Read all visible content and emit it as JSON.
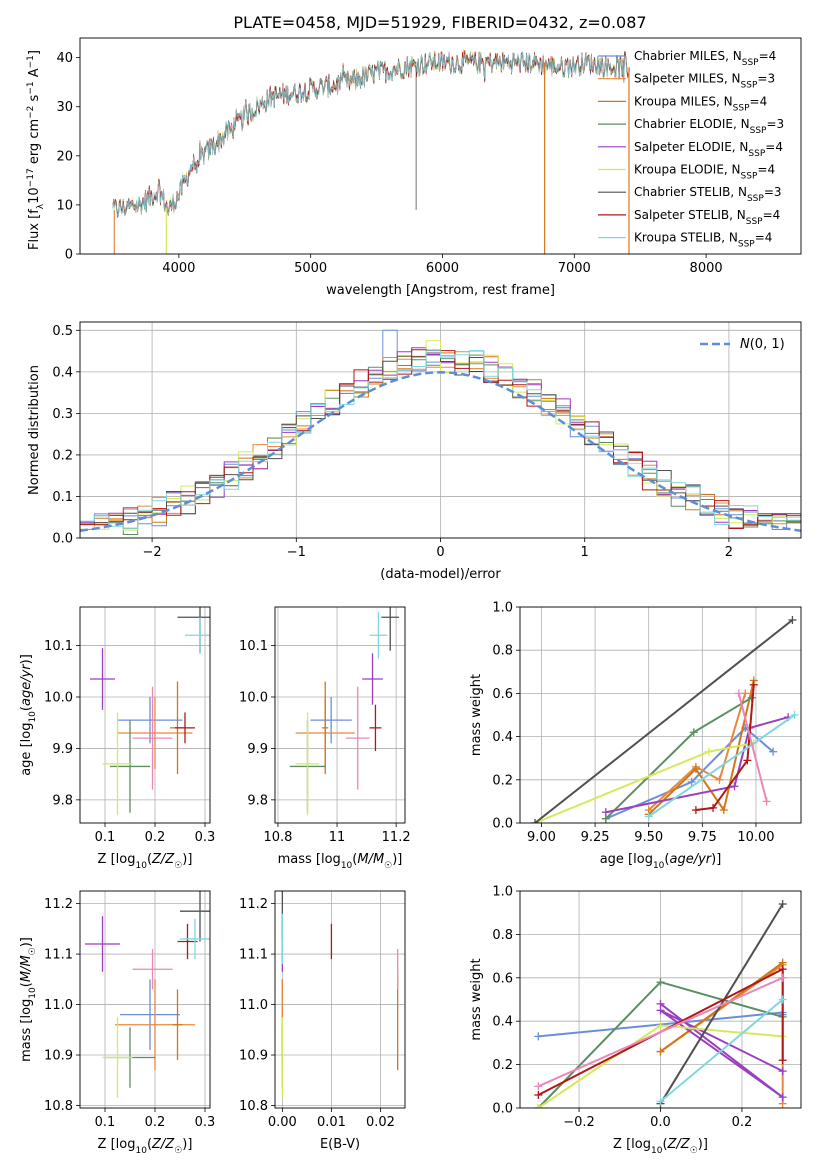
{
  "figure": {
    "title": "PLATE=0458, MJD=51929, FIBERID=0432, z=0.087"
  },
  "colors": {
    "Chabrier MILES": "#6a8fd8",
    "Salpeter MILES": "#e8883e",
    "Kroupa MILES": "#d07818",
    "Chabrier ELODIE": "#5b8f63",
    "Salpeter ELODIE": "#9a3fc0",
    "Kroupa ELODIE": "#d7e85a",
    "Chabrier STELIB": "#505050",
    "Salpeter STELIB": "#b01818",
    "Kroupa STELIB": "#7fd7df",
    "pink": "#e888b8",
    "grid": "#b0b0b0",
    "gaussian": "#5b8fd8"
  },
  "chart_data": [
    {
      "id": "spectrum",
      "type": "line",
      "xlabel": "wavelength [Angstrom, rest frame]",
      "ylabel": "Flux [f_λ 10^-17 erg cm^-2 s^-1 A^-1]",
      "xlim": [
        3250,
        8720
      ],
      "ylim": [
        0,
        44
      ],
      "xticks": [
        4000,
        5000,
        6000,
        7000,
        8000
      ],
      "yticks": [
        0,
        10,
        20,
        30,
        40
      ],
      "grid": false,
      "legend_position": "upper right",
      "legend": [
        "Chabrier MILES, N_SSP=4",
        "Salpeter MILES, N_SSP=3",
        "Kroupa MILES, N_SSP=4",
        "Chabrier ELODIE, N_SSP=3",
        "Salpeter ELODIE, N_SSP=4",
        "Kroupa ELODIE, N_SSP=4",
        "Chabrier STELIB, N_SSP=3",
        "Salpeter STELIB, N_SSP=4",
        "Kroupa STELIB, N_SSP=4"
      ],
      "anchors_x": [
        3500,
        3700,
        3850,
        3920,
        4000,
        4100,
        4300,
        4500,
        4700,
        4900,
        5100,
        5300,
        5500,
        5700,
        5900,
        6100,
        6300,
        6500,
        6700,
        6900,
        7100,
        7300,
        7420
      ],
      "anchors_y": [
        9,
        10,
        13,
        9,
        12,
        18,
        23,
        28,
        32,
        33,
        34,
        35,
        37,
        38,
        39,
        39,
        39,
        39,
        39,
        38,
        39,
        38,
        38
      ]
    },
    {
      "id": "residuals",
      "type": "histogram",
      "xlabel": "(data-model)/error",
      "ylabel": "Normed distribution",
      "xlim": [
        -2.5,
        2.5
      ],
      "ylim": [
        0,
        0.52
      ],
      "xticks": [
        -2,
        -1,
        0,
        1,
        2
      ],
      "yticks": [
        0.0,
        0.1,
        0.2,
        0.3,
        0.4,
        0.5
      ],
      "grid": true,
      "legend_position": "upper right",
      "legend": [
        "N(0,1)"
      ],
      "bin_edges_start": -2.5,
      "bin_width": 0.1,
      "base_series_9_models": "N(0,1) density with per-model scatter",
      "selected_heights": {
        "-0.4": 0.5,
        "-0.1": 0.48,
        "0.3": 0.44
      }
    },
    {
      "id": "age-vs-Z",
      "type": "scatter",
      "xlabel": "Z [log10(Z/Z☉)]",
      "ylabel": "age [log10(age/yr)]",
      "xlim": [
        0.05,
        0.31
      ],
      "ylim": [
        9.755,
        10.175
      ],
      "xticks": [
        0.1,
        0.2,
        0.3
      ],
      "yticks": [
        9.8,
        9.9,
        10.0,
        10.1
      ],
      "grid": true,
      "points": [
        {
          "model": "Chabrier MILES",
          "x": 0.19,
          "y": 9.955,
          "xerr": 0.065,
          "yerr": 0.045
        },
        {
          "model": "Salpeter MILES",
          "x": 0.2,
          "y": 9.93,
          "xerr": 0.075,
          "yerr": 0.07
        },
        {
          "model": "Kroupa MILES",
          "x": 0.245,
          "y": 9.94,
          "xerr": 0.015,
          "yerr": 0.09
        },
        {
          "model": "Chabrier ELODIE",
          "x": 0.15,
          "y": 9.865,
          "xerr": 0.04,
          "yerr": 0.09
        },
        {
          "model": "Salpeter ELODIE",
          "x": 0.095,
          "y": 10.035,
          "xerr": 0.025,
          "yerr": 0.06
        },
        {
          "model": "Kroupa ELODIE",
          "x": 0.125,
          "y": 9.87,
          "xerr": 0.03,
          "yerr": 0.1
        },
        {
          "model": "Chabrier STELIB",
          "x": 0.29,
          "y": 10.155,
          "xerr": 0.045,
          "yerr": 0.07
        },
        {
          "model": "Salpeter STELIB",
          "x": 0.26,
          "y": 9.94,
          "xerr": 0.02,
          "yerr": 0.03
        },
        {
          "model": "Kroupa STELIB",
          "x": 0.29,
          "y": 10.12,
          "xerr": 0.03,
          "yerr": 0.035
        },
        {
          "model": "pink",
          "x": 0.195,
          "y": 9.92,
          "xerr": 0.04,
          "yerr": 0.1
        }
      ]
    },
    {
      "id": "age-vs-mass",
      "type": "scatter",
      "xlabel": "mass [log10(M/M☉)]",
      "ylabel": "",
      "xlim": [
        10.79,
        11.23
      ],
      "ylim": [
        9.755,
        10.175
      ],
      "xticks": [
        10.8,
        11.0,
        11.2
      ],
      "yticks": [
        9.8,
        9.9,
        10.0,
        10.1
      ],
      "grid": true,
      "points": [
        {
          "model": "Chabrier MILES",
          "x": 10.98,
          "y": 9.955,
          "xerr": 0.07,
          "yerr": 0.045
        },
        {
          "model": "Salpeter MILES",
          "x": 10.96,
          "y": 9.93,
          "xerr": 0.1,
          "yerr": 0.07
        },
        {
          "model": "Kroupa MILES",
          "x": 10.96,
          "y": 9.94,
          "xerr": 0.01,
          "yerr": 0.09
        },
        {
          "model": "Chabrier ELODIE",
          "x": 10.9,
          "y": 9.865,
          "xerr": 0.06,
          "yerr": 0.09
        },
        {
          "model": "Salpeter ELODIE",
          "x": 11.12,
          "y": 10.035,
          "xerr": 0.035,
          "yerr": 0.05
        },
        {
          "model": "Kroupa ELODIE",
          "x": 10.9,
          "y": 9.87,
          "xerr": 0.04,
          "yerr": 0.1
        },
        {
          "model": "Chabrier STELIB",
          "x": 11.18,
          "y": 10.155,
          "xerr": 0.03,
          "yerr": 0.065
        },
        {
          "model": "Salpeter STELIB",
          "x": 11.13,
          "y": 9.94,
          "xerr": 0.02,
          "yerr": 0.045
        },
        {
          "model": "Kroupa STELIB",
          "x": 11.14,
          "y": 10.12,
          "xerr": 0.03,
          "yerr": 0.045
        },
        {
          "model": "pink",
          "x": 11.07,
          "y": 9.92,
          "xerr": 0.04,
          "yerr": 0.1
        }
      ]
    },
    {
      "id": "massweight-vs-age",
      "type": "line",
      "xlabel": "age [log10(age/yr)]",
      "ylabel": "mass weight",
      "xlim": [
        8.9,
        10.21
      ],
      "ylim": [
        0,
        1.0
      ],
      "xticks": [
        9.0,
        9.25,
        9.5,
        9.75,
        10.0
      ],
      "xticklabels": [
        "9.00",
        "9.25",
        "9.50",
        "9.75",
        "10.00"
      ],
      "yticks": [
        0.0,
        0.2,
        0.4,
        0.6,
        0.8,
        1.0
      ],
      "grid": true,
      "series": [
        {
          "model": "Chabrier MILES",
          "x": [
            9.3,
            9.7,
            9.95,
            10.08
          ],
          "y": [
            0.02,
            0.19,
            0.44,
            0.33
          ]
        },
        {
          "model": "Salpeter MILES",
          "x": [
            9.5,
            9.72,
            9.83,
            9.95
          ],
          "y": [
            0.06,
            0.26,
            0.2,
            0.6
          ]
        },
        {
          "model": "Kroupa MILES",
          "x": [
            9.5,
            9.72,
            9.85,
            9.99
          ],
          "y": [
            0.04,
            0.25,
            0.06,
            0.66
          ]
        },
        {
          "model": "Chabrier ELODIE",
          "x": [
            9.3,
            9.71,
            9.98
          ],
          "y": [
            0.02,
            0.42,
            0.58
          ]
        },
        {
          "model": "Salpeter ELODIE",
          "x": [
            9.3,
            9.9,
            9.97,
            10.15
          ],
          "y": [
            0.05,
            0.17,
            0.44,
            0.49
          ]
        },
        {
          "model": "Kroupa ELODIE",
          "x": [
            8.97,
            9.78,
            9.99
          ],
          "y": [
            0.0,
            0.33,
            0.37
          ]
        },
        {
          "model": "Chabrier STELIB",
          "x": [
            8.97,
            10.17
          ],
          "y": [
            0.0,
            0.94
          ]
        },
        {
          "model": "Salpeter STELIB",
          "x": [
            9.72,
            9.8,
            9.96,
            9.99
          ],
          "y": [
            0.06,
            0.07,
            0.29,
            0.64
          ]
        },
        {
          "model": "Kroupa STELIB",
          "x": [
            9.5,
            10.18
          ],
          "y": [
            0.03,
            0.5
          ]
        },
        {
          "model": "pink",
          "x": [
            9.92,
            10.05
          ],
          "y": [
            0.6,
            0.1
          ]
        }
      ]
    },
    {
      "id": "mass-vs-Z",
      "type": "scatter",
      "xlabel": "Z [log10(Z/Z☉)]",
      "ylabel": "mass [log10(M/M☉)]",
      "xlim": [
        0.05,
        0.31
      ],
      "ylim": [
        10.795,
        11.225
      ],
      "xticks": [
        0.1,
        0.2,
        0.3
      ],
      "yticks": [
        10.8,
        10.9,
        11.0,
        11.1,
        11.2
      ],
      "grid": true,
      "points": [
        {
          "model": "Chabrier MILES",
          "x": 0.19,
          "y": 10.98,
          "xerr": 0.06,
          "yerr": 0.07
        },
        {
          "model": "Salpeter MILES",
          "x": 0.2,
          "y": 10.96,
          "xerr": 0.08,
          "yerr": 0.09
        },
        {
          "model": "Kroupa MILES",
          "x": 0.245,
          "y": 10.96,
          "xerr": 0.01,
          "yerr": 0.07
        },
        {
          "model": "Chabrier ELODIE",
          "x": 0.15,
          "y": 10.895,
          "xerr": 0.05,
          "yerr": 0.06
        },
        {
          "model": "Salpeter ELODIE",
          "x": 0.095,
          "y": 11.12,
          "xerr": 0.035,
          "yerr": 0.055
        },
        {
          "model": "Kroupa ELODIE",
          "x": 0.125,
          "y": 10.895,
          "xerr": 0.03,
          "yerr": 0.08
        },
        {
          "model": "Chabrier STELIB",
          "x": 0.29,
          "y": 11.185,
          "xerr": 0.04,
          "yerr": 0.06
        },
        {
          "model": "Salpeter STELIB",
          "x": 0.265,
          "y": 11.125,
          "xerr": 0.02,
          "yerr": 0.035
        },
        {
          "model": "Kroupa STELIB",
          "x": 0.28,
          "y": 11.13,
          "xerr": 0.03,
          "yerr": 0.04
        },
        {
          "model": "pink",
          "x": 0.195,
          "y": 11.07,
          "xerr": 0.04,
          "yerr": 0.04
        }
      ]
    },
    {
      "id": "mass-vs-EBV",
      "type": "scatter",
      "xlabel": "E(B-V)",
      "ylabel": "",
      "xlim": [
        -0.0015,
        0.025
      ],
      "ylim": [
        10.795,
        11.225
      ],
      "xticks": [
        0.0,
        0.01,
        0.02
      ],
      "xticklabels": [
        "0.00",
        "0.01",
        "0.02"
      ],
      "yticks": [
        10.8,
        10.9,
        11.0,
        11.1,
        11.2
      ],
      "grid": true,
      "points": [
        {
          "model": "Chabrier MILES",
          "x": 0.0,
          "y": 10.98,
          "xerr": 0,
          "yerr": 0.07
        },
        {
          "model": "Salpeter MILES",
          "x": 0.0,
          "y": 10.96,
          "xerr": 0,
          "yerr": 0.09
        },
        {
          "model": "Kroupa MILES",
          "x": 0.0235,
          "y": 10.97,
          "xerr": 0,
          "yerr": 0.1
        },
        {
          "model": "Chabrier ELODIE",
          "x": 0.0,
          "y": 10.895,
          "xerr": 0,
          "yerr": 0.06
        },
        {
          "model": "Salpeter ELODIE",
          "x": 0.0,
          "y": 11.12,
          "xerr": 0,
          "yerr": 0.055
        },
        {
          "model": "Kroupa ELODIE",
          "x": 0.0,
          "y": 10.895,
          "xerr": 0,
          "yerr": 0.08
        },
        {
          "model": "Chabrier STELIB",
          "x": 0.0,
          "y": 11.185,
          "xerr": 0,
          "yerr": 0.06
        },
        {
          "model": "Salpeter STELIB",
          "x": 0.01,
          "y": 11.125,
          "xerr": 0,
          "yerr": 0.035
        },
        {
          "model": "Kroupa STELIB",
          "x": 0.0,
          "y": 11.13,
          "xerr": 0,
          "yerr": 0.05
        },
        {
          "model": "pink",
          "x": 0.0235,
          "y": 11.07,
          "xerr": 0,
          "yerr": 0.04
        }
      ]
    },
    {
      "id": "massweight-vs-Z",
      "type": "line",
      "xlabel": "Z [log10(Z/Z☉)]",
      "ylabel": "mass weight",
      "xlim": [
        -0.345,
        0.345
      ],
      "ylim": [
        0,
        1.0
      ],
      "xticks": [
        -0.2,
        0.0,
        0.2
      ],
      "xticklabels": [
        "−0.2",
        "0.0",
        "0.2"
      ],
      "yticks": [
        0.0,
        0.2,
        0.4,
        0.6,
        0.8,
        1.0
      ],
      "grid": true,
      "series": [
        {
          "model": "Chabrier MILES",
          "x": [
            -0.3,
            0.3,
            0.3
          ],
          "y": [
            0.33,
            0.44,
            0.43
          ]
        },
        {
          "model": "Salpeter MILES",
          "x": [
            0.0,
            0.3,
            0.3
          ],
          "y": [
            0.26,
            0.66,
            0.02
          ]
        },
        {
          "model": "Kroupa MILES",
          "x": [
            0.0,
            0.3
          ],
          "y": [
            0.26,
            0.67
          ]
        },
        {
          "model": "Chabrier ELODIE",
          "x": [
            -0.3,
            0.0,
            0.3
          ],
          "y": [
            0.0,
            0.58,
            0.42
          ]
        },
        {
          "model": "Salpeter ELODIE",
          "x": [
            0.0,
            0.3,
            0.0,
            0.3
          ],
          "y": [
            0.48,
            0.05,
            0.45,
            0.17
          ]
        },
        {
          "model": "Kroupa ELODIE",
          "x": [
            -0.3,
            0.0,
            0.3
          ],
          "y": [
            0.0,
            0.38,
            0.33
          ]
        },
        {
          "model": "Chabrier STELIB",
          "x": [
            0.0,
            0.3
          ],
          "y": [
            0.02,
            0.94
          ]
        },
        {
          "model": "Salpeter STELIB",
          "x": [
            -0.3,
            0.3,
            0.3
          ],
          "y": [
            0.06,
            0.64,
            0.22
          ]
        },
        {
          "model": "Kroupa STELIB",
          "x": [
            0.0,
            0.3
          ],
          "y": [
            0.03,
            0.5
          ]
        },
        {
          "model": "pink",
          "x": [
            -0.3,
            0.3
          ],
          "y": [
            0.1,
            0.6
          ]
        }
      ]
    }
  ]
}
